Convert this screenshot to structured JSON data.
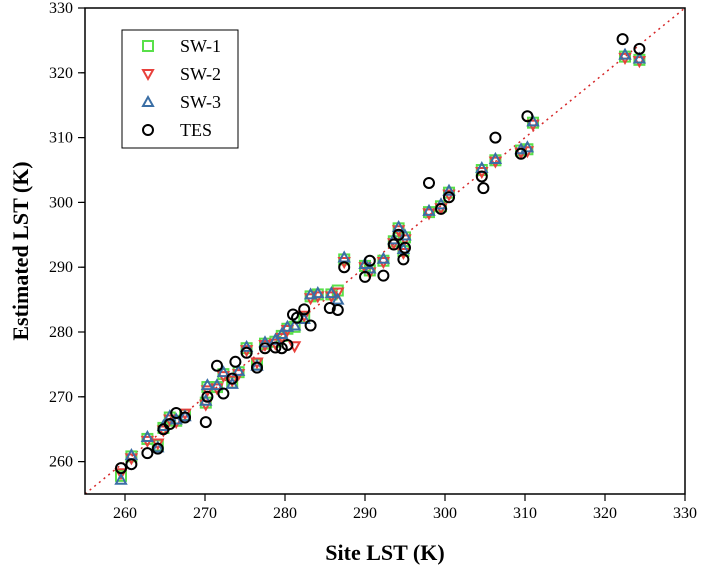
{
  "chart_data": {
    "type": "scatter",
    "xlabel": "Site LST (K)",
    "ylabel": "Estimated LST (K)",
    "xlim": [
      255,
      330
    ],
    "ylim": [
      255,
      330
    ],
    "xticks": [
      260,
      270,
      280,
      290,
      300,
      310,
      320,
      330
    ],
    "yticks": [
      260,
      270,
      280,
      290,
      300,
      310,
      320,
      330
    ],
    "xtick_labels": [
      "260",
      "270",
      "280",
      "290",
      "300",
      "310",
      "320",
      "330"
    ],
    "ytick_labels": [
      "260",
      "270",
      "280",
      "290",
      "300",
      "310",
      "320",
      "330"
    ],
    "grid": false,
    "legend_position": "top-left",
    "reference_line": {
      "style": "dotted",
      "color": "#d62728",
      "x": [
        255,
        330
      ],
      "y": [
        255,
        330
      ]
    },
    "series": [
      {
        "name": "SW-1",
        "marker": "square",
        "color": "#59e04a",
        "points": [
          [
            259.5,
            257.8
          ],
          [
            260.8,
            260.8
          ],
          [
            262.8,
            263.5
          ],
          [
            264.1,
            262.5
          ],
          [
            264.8,
            265.2
          ],
          [
            265.6,
            266.8
          ],
          [
            266.4,
            266.3
          ],
          [
            267.5,
            267.2
          ],
          [
            270.1,
            269.1
          ],
          [
            270.3,
            271.5
          ],
          [
            271.5,
            271.5
          ],
          [
            272.3,
            273.5
          ],
          [
            273.4,
            272.2
          ],
          [
            274.2,
            273.8
          ],
          [
            275.2,
            277.5
          ],
          [
            276.5,
            275.0
          ],
          [
            277.5,
            278.2
          ],
          [
            278.8,
            278.5
          ],
          [
            279.6,
            279.4
          ],
          [
            280.3,
            280.5
          ],
          [
            281.2,
            280.8
          ],
          [
            282.4,
            282.3
          ],
          [
            283.2,
            285.5
          ],
          [
            284.1,
            285.8
          ],
          [
            285.8,
            285.8
          ],
          [
            286.6,
            286.4
          ],
          [
            287.4,
            291.2
          ],
          [
            290.0,
            290.2
          ],
          [
            290.6,
            289.5
          ],
          [
            292.3,
            291.0
          ],
          [
            293.6,
            294.0
          ],
          [
            294.2,
            296.0
          ],
          [
            294.8,
            292.5
          ],
          [
            295.0,
            294.6
          ],
          [
            298.0,
            298.5
          ],
          [
            299.5,
            299.4
          ],
          [
            300.5,
            301.5
          ],
          [
            304.6,
            305.0
          ],
          [
            306.3,
            306.5
          ],
          [
            309.5,
            308.0
          ],
          [
            310.3,
            308.2
          ],
          [
            311.0,
            312.3
          ],
          [
            322.5,
            322.5
          ],
          [
            324.3,
            322.0
          ]
        ]
      },
      {
        "name": "SW-2",
        "marker": "triangle-down",
        "color": "#e8413c",
        "points": [
          [
            259.5,
            258.2
          ],
          [
            260.8,
            260.5
          ],
          [
            262.8,
            263.2
          ],
          [
            264.1,
            262.8
          ],
          [
            264.8,
            264.8
          ],
          [
            265.6,
            266.5
          ],
          [
            266.4,
            266.1
          ],
          [
            267.5,
            267.4
          ],
          [
            270.1,
            268.8
          ],
          [
            270.3,
            271.0
          ],
          [
            271.5,
            271.3
          ],
          [
            272.3,
            273.2
          ],
          [
            273.4,
            272.5
          ],
          [
            274.2,
            273.5
          ],
          [
            275.2,
            277.2
          ],
          [
            276.5,
            275.3
          ],
          [
            277.5,
            278.0
          ],
          [
            278.8,
            278.2
          ],
          [
            279.6,
            279.1
          ],
          [
            280.3,
            280.3
          ],
          [
            281.2,
            277.8
          ],
          [
            282.4,
            282.5
          ],
          [
            283.2,
            285.2
          ],
          [
            284.1,
            285.5
          ],
          [
            285.8,
            285.5
          ],
          [
            286.6,
            286.1
          ],
          [
            287.4,
            290.8
          ],
          [
            290.0,
            290.0
          ],
          [
            290.6,
            289.2
          ],
          [
            292.3,
            290.8
          ],
          [
            293.6,
            293.7
          ],
          [
            294.2,
            295.7
          ],
          [
            294.8,
            292.2
          ],
          [
            295.0,
            294.3
          ],
          [
            298.0,
            298.3
          ],
          [
            299.5,
            299.1
          ],
          [
            300.5,
            301.2
          ],
          [
            304.6,
            304.7
          ],
          [
            306.3,
            306.3
          ],
          [
            309.5,
            307.7
          ],
          [
            310.3,
            307.9
          ],
          [
            311.0,
            312.0
          ],
          [
            322.5,
            322.3
          ],
          [
            324.3,
            321.8
          ]
        ]
      },
      {
        "name": "SW-3",
        "marker": "triangle-up",
        "color": "#3a6ea5",
        "points": [
          [
            259.5,
            257.2
          ],
          [
            260.8,
            261.0
          ],
          [
            262.8,
            263.8
          ],
          [
            264.1,
            262.2
          ],
          [
            264.8,
            265.5
          ],
          [
            265.6,
            267.0
          ],
          [
            266.4,
            266.5
          ],
          [
            267.5,
            267.0
          ],
          [
            270.1,
            269.4
          ],
          [
            270.3,
            271.8
          ],
          [
            271.5,
            271.8
          ],
          [
            272.3,
            273.8
          ],
          [
            273.4,
            272.0
          ],
          [
            274.2,
            274.0
          ],
          [
            275.2,
            277.7
          ],
          [
            276.5,
            274.8
          ],
          [
            277.5,
            278.4
          ],
          [
            278.8,
            278.8
          ],
          [
            279.6,
            279.7
          ],
          [
            280.3,
            280.8
          ],
          [
            281.2,
            281.0
          ],
          [
            282.4,
            282.0
          ],
          [
            283.2,
            285.8
          ],
          [
            284.1,
            286.0
          ],
          [
            285.8,
            286.0
          ],
          [
            286.6,
            285.0
          ],
          [
            287.4,
            291.5
          ],
          [
            290.0,
            290.5
          ],
          [
            290.6,
            289.8
          ],
          [
            292.3,
            291.3
          ],
          [
            293.6,
            294.3
          ],
          [
            294.2,
            296.2
          ],
          [
            294.8,
            292.8
          ],
          [
            295.0,
            294.9
          ],
          [
            298.0,
            298.7
          ],
          [
            299.5,
            299.7
          ],
          [
            300.5,
            301.8
          ],
          [
            304.6,
            305.3
          ],
          [
            306.3,
            306.7
          ],
          [
            309.5,
            308.2
          ],
          [
            310.3,
            308.5
          ],
          [
            311.0,
            312.5
          ],
          [
            322.5,
            322.8
          ],
          [
            324.3,
            322.2
          ]
        ]
      },
      {
        "name": "TES",
        "marker": "circle",
        "color": "#000000",
        "points": [
          [
            259.5,
            259.0
          ],
          [
            260.8,
            259.6
          ],
          [
            262.8,
            261.3
          ],
          [
            264.1,
            262.0
          ],
          [
            264.8,
            265.0
          ],
          [
            265.6,
            265.8
          ],
          [
            266.4,
            267.5
          ],
          [
            267.5,
            266.8
          ],
          [
            270.1,
            266.1
          ],
          [
            270.3,
            270.0
          ],
          [
            271.5,
            274.8
          ],
          [
            272.3,
            270.5
          ],
          [
            273.4,
            272.8
          ],
          [
            273.8,
            275.4
          ],
          [
            275.2,
            276.8
          ],
          [
            276.5,
            274.5
          ],
          [
            277.5,
            277.5
          ],
          [
            278.8,
            277.6
          ],
          [
            279.6,
            277.5
          ],
          [
            280.3,
            278.0
          ],
          [
            281.0,
            282.7
          ],
          [
            281.5,
            282.2
          ],
          [
            282.4,
            283.5
          ],
          [
            283.2,
            281.0
          ],
          [
            285.6,
            283.7
          ],
          [
            286.6,
            283.4
          ],
          [
            287.4,
            290.0
          ],
          [
            290.0,
            288.5
          ],
          [
            290.6,
            291.0
          ],
          [
            292.3,
            288.7
          ],
          [
            293.6,
            293.5
          ],
          [
            294.2,
            295.0
          ],
          [
            294.8,
            291.2
          ],
          [
            295.0,
            293.0
          ],
          [
            298.0,
            303.0
          ],
          [
            299.5,
            299.0
          ],
          [
            300.5,
            300.8
          ],
          [
            304.6,
            304.0
          ],
          [
            304.8,
            302.2
          ],
          [
            306.3,
            310.0
          ],
          [
            309.5,
            307.5
          ],
          [
            310.3,
            313.3
          ],
          [
            322.2,
            325.2
          ],
          [
            324.3,
            323.7
          ]
        ]
      }
    ]
  }
}
